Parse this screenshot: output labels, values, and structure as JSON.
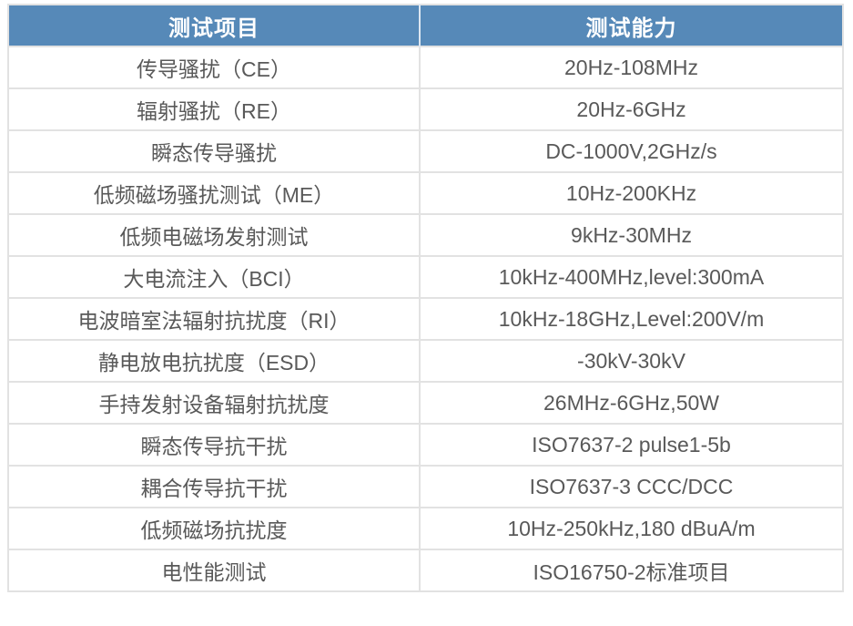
{
  "chart_data": {
    "type": "table",
    "title": "",
    "columns": [
      "测试项目",
      "测试能力"
    ],
    "rows": [
      [
        "传导骚扰（CE）",
        "20Hz-108MHz"
      ],
      [
        "辐射骚扰（RE）",
        "20Hz-6GHz"
      ],
      [
        "瞬态传导骚扰",
        "DC-1000V,2GHz/s"
      ],
      [
        "低频磁场骚扰测试（ME）",
        "10Hz-200KHz"
      ],
      [
        "低频电磁场发射测试",
        "9kHz-30MHz"
      ],
      [
        "大电流注入（BCI）",
        "10kHz-400MHz,level:300mA"
      ],
      [
        "电波暗室法辐射抗扰度（RI）",
        "10kHz-18GHz,Level:200V/m"
      ],
      [
        "静电放电抗扰度（ESD）",
        "-30kV-30kV"
      ],
      [
        "手持发射设备辐射抗扰度",
        "26MHz-6GHz,50W"
      ],
      [
        "瞬态传导抗干扰",
        "ISO7637-2 pulse1-5b"
      ],
      [
        "耦合传导抗干扰",
        "ISO7637-3 CCC/DCC"
      ],
      [
        "低频磁场抗扰度",
        "10Hz-250kHz,180 dBuA/m"
      ],
      [
        "电性能测试",
        "ISO16750-2标准项目"
      ]
    ]
  },
  "colors": {
    "header_bg": "#5689B8",
    "header_text": "#FFFFFF",
    "body_text": "#595959",
    "border": "#E2E2E2",
    "header_divider": "#DCE6F1",
    "page_bg": "#FFFFFF"
  }
}
